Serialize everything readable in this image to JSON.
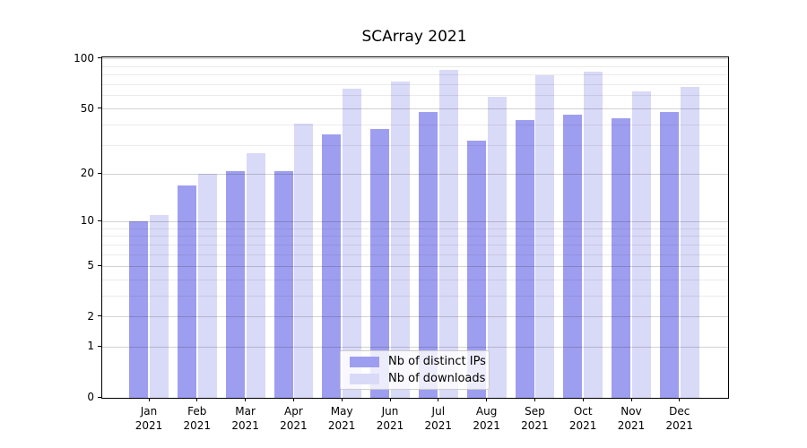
{
  "chart_data": {
    "type": "bar",
    "title": "SCArray 2021",
    "categories": [
      "Jan 2021",
      "Feb 2021",
      "Mar 2021",
      "Apr 2021",
      "May 2021",
      "Jun 2021",
      "Jul 2021",
      "Aug 2021",
      "Sep 2021",
      "Oct 2021",
      "Nov 2021",
      "Dec 2021"
    ],
    "series": [
      {
        "name": "Nb of distinct IPs",
        "color": "#9e9ef0",
        "values": [
          10,
          17,
          21,
          21,
          35,
          38,
          48,
          32,
          43,
          46,
          44,
          48
        ]
      },
      {
        "name": "Nb of downloads",
        "color": "#d9d9f8",
        "values": [
          11,
          20,
          27,
          41,
          66,
          73,
          86,
          59,
          80,
          84,
          64,
          68
        ]
      }
    ],
    "yscale": "log1p",
    "ylim": [
      0,
      102
    ],
    "y_major_ticks": [
      0,
      1,
      2,
      5,
      10,
      20,
      50,
      100
    ],
    "y_minor_gridlines": [
      3,
      4,
      6,
      7,
      8,
      9,
      30,
      40,
      60,
      70,
      80,
      90
    ],
    "grid": true,
    "legend_position": "lower center inside"
  },
  "colors": {
    "background": "#ffffff",
    "spine": "#000000",
    "text": "#000000",
    "grid_major": "#d2d2d2",
    "grid_minor": "#ebebeb",
    "legend_border": "#cccccc"
  }
}
